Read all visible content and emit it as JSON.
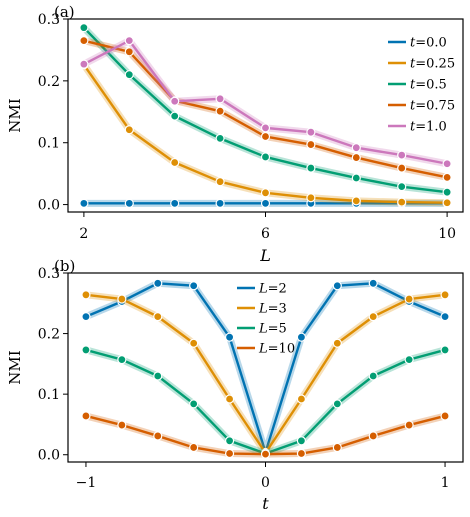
{
  "chart_data": [
    {
      "type": "line",
      "panel_label": "(a)",
      "xlabel": "L",
      "ylabel": "NMI",
      "xlim": [
        1.65,
        10.35
      ],
      "ylim": [
        -0.012,
        0.3
      ],
      "xticks": [
        2,
        6,
        10
      ],
      "yticks": [
        0.0,
        0.1,
        0.2,
        0.3
      ],
      "ytick_labels": [
        "0.0",
        "0.1",
        "0.2",
        "0.3"
      ],
      "legend_position": "upper-right",
      "legend_prefix": "t",
      "x": [
        2,
        3,
        4,
        5,
        6,
        7,
        8,
        9,
        10
      ],
      "series": [
        {
          "name": "0.0",
          "color": "#0173b2",
          "values": [
            0.002,
            0.002,
            0.002,
            0.002,
            0.002,
            0.002,
            0.002,
            0.002,
            0.002
          ]
        },
        {
          "name": "0.25",
          "color": "#de8f05",
          "values": [
            0.226,
            0.121,
            0.068,
            0.037,
            0.019,
            0.011,
            0.006,
            0.004,
            0.003
          ]
        },
        {
          "name": "0.5",
          "color": "#029e73",
          "values": [
            0.286,
            0.21,
            0.143,
            0.107,
            0.077,
            0.059,
            0.043,
            0.029,
            0.02
          ]
        },
        {
          "name": "0.75",
          "color": "#d55e00",
          "values": [
            0.265,
            0.247,
            0.168,
            0.151,
            0.11,
            0.097,
            0.076,
            0.059,
            0.044
          ]
        },
        {
          "name": "1.0",
          "color": "#cc78bc",
          "values": [
            0.227,
            0.265,
            0.167,
            0.171,
            0.124,
            0.117,
            0.092,
            0.08,
            0.066
          ]
        }
      ]
    },
    {
      "type": "line",
      "panel_label": "(b)",
      "xlabel": "t",
      "ylabel": "NMI",
      "xlim": [
        -1.1,
        1.1
      ],
      "ylim": [
        -0.012,
        0.3
      ],
      "xticks": [
        -1,
        0,
        1
      ],
      "xtick_labels": [
        "−1",
        "0",
        "1"
      ],
      "yticks": [
        0.0,
        0.1,
        0.2,
        0.3
      ],
      "ytick_labels": [
        "0.0",
        "0.1",
        "0.2",
        "0.3"
      ],
      "legend_position": "upper-center",
      "legend_prefix": "L",
      "x": [
        -1.0,
        -0.8,
        -0.6,
        -0.4,
        -0.2,
        0.0,
        0.2,
        0.4,
        0.6,
        0.8,
        1.0
      ],
      "series": [
        {
          "name": "2",
          "color": "#0173b2",
          "values": [
            0.228,
            0.253,
            0.283,
            0.279,
            0.194,
            0.004,
            0.194,
            0.279,
            0.283,
            0.253,
            0.228
          ]
        },
        {
          "name": "3",
          "color": "#de8f05",
          "values": [
            0.264,
            0.257,
            0.228,
            0.184,
            0.092,
            0.003,
            0.092,
            0.184,
            0.228,
            0.257,
            0.264
          ]
        },
        {
          "name": "5",
          "color": "#029e73",
          "values": [
            0.173,
            0.157,
            0.13,
            0.084,
            0.023,
            0.002,
            0.023,
            0.084,
            0.13,
            0.157,
            0.173
          ]
        },
        {
          "name": "10",
          "color": "#d55e00",
          "values": [
            0.064,
            0.049,
            0.031,
            0.012,
            0.002,
            0.001,
            0.002,
            0.012,
            0.031,
            0.049,
            0.064
          ]
        }
      ]
    }
  ]
}
